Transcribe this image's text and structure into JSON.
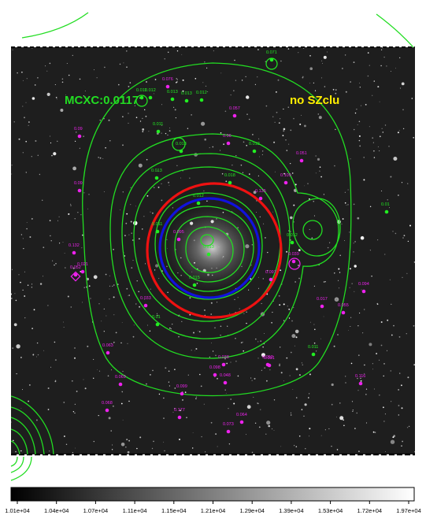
{
  "image": {
    "cluster_label": "MCXC:0.0117",
    "sz_label": "no SZclu",
    "cluster_label_color": "#22dd22",
    "sz_label_color": "#ffee00",
    "contour_color": "#22dd22",
    "red_circle_color": "#ee1111",
    "blue_circle_color": "#1111dd",
    "source_color_green": "#22ee22",
    "source_color_magenta": "#ee22ee"
  },
  "colorbar": {
    "ticks": [
      "1.01e+04",
      "1.04e+04",
      "1.07e+04",
      "1.11e+04",
      "1.15e+04",
      "1.21e+04",
      "1.29e+04",
      "1.39e+04",
      "1.53e+04",
      "1.72e+04",
      "1.97e+04"
    ]
  },
  "sources": {
    "green": [
      "0.071",
      "0.012",
      "0.013",
      "0.013",
      "0.012",
      "0.011",
      "0.013",
      "0.012",
      "0.013",
      "0.018",
      "0.012",
      "0.011",
      "0.013",
      "0.012",
      "0.015",
      "0.01",
      "0.011",
      "0.01",
      "0.011"
    ],
    "magenta": [
      "0.076",
      "0.057",
      "0.06",
      "0.09",
      "0.09",
      "0.051",
      "0.109",
      "0.135",
      "0.095",
      "0.132",
      "0.052",
      "0.021",
      "0.097",
      "0.094",
      "0.017",
      "0.055",
      "0.033",
      "0.091",
      "0.038",
      "0.063",
      "0.052",
      "0.048",
      "0.064",
      "0.116",
      "0.098",
      "0.099",
      "0.069",
      "0.177",
      "0.073",
      "0.068",
      "0.039"
    ]
  }
}
